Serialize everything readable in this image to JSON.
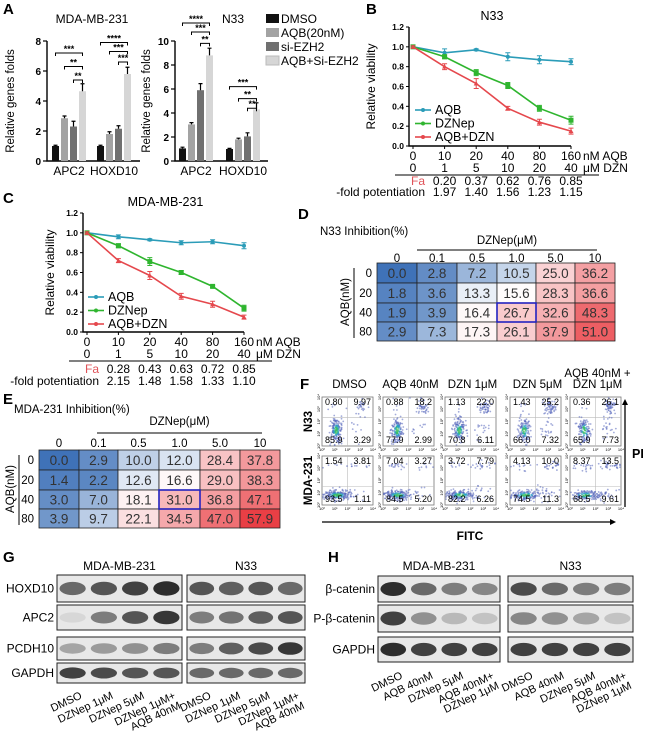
{
  "panels": {
    "A": "A",
    "B": "B",
    "C": "C",
    "D": "D",
    "E": "E",
    "F": "F",
    "G": "G",
    "H": "H"
  },
  "chart_data": [
    {
      "type": "bar",
      "title": "MDA-MB-231",
      "ylabel": "Relative genes folds",
      "categories": [
        "APC2",
        "HOXD10"
      ],
      "ylim": [
        0,
        8
      ],
      "yticks": [
        "0",
        "2",
        "4",
        "6",
        "8"
      ],
      "series": [
        {
          "name": "DMSO",
          "color": "#111111",
          "values": [
            1.0,
            1.0
          ],
          "errors": [
            0.05,
            0.05
          ]
        },
        {
          "name": "AQB(20nM)",
          "color": "#a3a3a3",
          "values": [
            2.85,
            1.8
          ],
          "errors": [
            0.15,
            0.15
          ]
        },
        {
          "name": "si-EZH2",
          "color": "#707070",
          "values": [
            2.3,
            2.15
          ],
          "errors": [
            0.35,
            0.2
          ]
        },
        {
          "name": "AQB+Si-EZH2",
          "color": "#d6d6d6",
          "values": [
            4.65,
            5.8
          ],
          "errors": [
            0.5,
            0.45
          ]
        }
      ],
      "significance": [
        {
          "category": 0,
          "from": 0,
          "to": 3,
          "label": "***",
          "y": 7.2
        },
        {
          "category": 0,
          "from": 1,
          "to": 3,
          "label": "**",
          "y": 6.3
        },
        {
          "category": 0,
          "from": 2,
          "to": 3,
          "label": "**",
          "y": 5.4
        },
        {
          "category": 1,
          "from": 0,
          "to": 3,
          "label": "****",
          "y": 7.9
        },
        {
          "category": 1,
          "from": 1,
          "to": 3,
          "label": "***",
          "y": 7.3
        },
        {
          "category": 1,
          "from": 2,
          "to": 3,
          "label": "***",
          "y": 6.6
        }
      ]
    },
    {
      "type": "bar",
      "title": "N33",
      "ylabel": "Relative genes folds",
      "categories": [
        "APC2",
        "HOXD10"
      ],
      "ylim": [
        0,
        10
      ],
      "yticks": [
        "0",
        "2",
        "4",
        "6",
        "8",
        "10"
      ],
      "series": [
        {
          "color": "#111111",
          "values": [
            1.05,
            1.0
          ],
          "errors": [
            0.1,
            0.05
          ]
        },
        {
          "color": "#a3a3a3",
          "values": [
            3.05,
            1.8
          ],
          "errors": [
            0.15,
            0.1
          ]
        },
        {
          "color": "#707070",
          "values": [
            5.9,
            2.05
          ],
          "errors": [
            0.55,
            0.3
          ]
        },
        {
          "color": "#d6d6d6",
          "values": [
            8.8,
            4.3
          ],
          "errors": [
            0.6,
            0.55
          ]
        }
      ],
      "significance": [
        {
          "category": 0,
          "from": 0,
          "to": 3,
          "label": "****",
          "y": 11.5
        },
        {
          "category": 0,
          "from": 1,
          "to": 3,
          "label": "***",
          "y": 10.75
        },
        {
          "category": 0,
          "from": 2,
          "to": 3,
          "label": "**",
          "y": 9.8
        },
        {
          "category": 1,
          "from": 0,
          "to": 3,
          "label": "***",
          "y": 6.2
        },
        {
          "category": 1,
          "from": 1,
          "to": 3,
          "label": "**",
          "y": 5.2
        },
        {
          "category": 1,
          "from": 2,
          "to": 3,
          "label": "**",
          "y": 4.4
        }
      ]
    },
    {
      "type": "line",
      "title": "N33",
      "ylabel": "Relative viability",
      "ylim": [
        0,
        1.2
      ],
      "yticks": [
        "0.0",
        "0.2",
        "0.4",
        "0.6",
        "0.8",
        "1.0",
        "1.2"
      ],
      "x_aqb": [
        "0",
        "10",
        "20",
        "40",
        "80",
        "160"
      ],
      "x_aqb_unit": "nM AQB",
      "x_dzn": [
        "0",
        "1",
        "5",
        "10",
        "20",
        "40"
      ],
      "x_dzn_unit": "μM DZN",
      "fa_label": "Fa",
      "fa": [
        "0.20",
        "0.37",
        "0.62",
        "0.76",
        "0.85"
      ],
      "fold_label": "-fold potentiation",
      "fold": [
        "1.97",
        "1.40",
        "1.56",
        "1.23",
        "1.15"
      ],
      "series": [
        {
          "name": "AQB",
          "color": "#2b9cb8",
          "values": [
            1.0,
            0.94,
            0.97,
            0.9,
            0.87,
            0.85
          ],
          "errors": [
            0.01,
            0.04,
            0.01,
            0.04,
            0.04,
            0.03
          ]
        },
        {
          "name": "DZNep",
          "color": "#2fb52f",
          "values": [
            1.0,
            0.9,
            0.74,
            0.61,
            0.38,
            0.26
          ],
          "errors": [
            0.01,
            0.02,
            0.03,
            0.03,
            0.03,
            0.04
          ]
        },
        {
          "name": "AQB+DZN",
          "color": "#e5484d",
          "values": [
            1.0,
            0.8,
            0.63,
            0.38,
            0.24,
            0.15
          ],
          "errors": [
            0.01,
            0.03,
            0.05,
            0.02,
            0.03,
            0.03
          ]
        }
      ]
    },
    {
      "type": "line",
      "title": "MDA-MB-231",
      "ylabel": "Relative viability",
      "ylim": [
        0,
        1.2
      ],
      "yticks": [
        "0.0",
        "0.2",
        "0.4",
        "0.6",
        "0.8",
        "1.0",
        "1.2"
      ],
      "x_aqb": [
        "0",
        "10",
        "20",
        "40",
        "80",
        "160"
      ],
      "x_aqb_unit": "nM AQB",
      "x_dzn": [
        "0",
        "1",
        "5",
        "10",
        "20",
        "40"
      ],
      "x_dzn_unit": "μM DZN",
      "fa_label": "Fa",
      "fa": [
        "0.28",
        "0.43",
        "0.63",
        "0.72",
        "0.85"
      ],
      "fold_label": "-fold potentiation",
      "fold": [
        "2.15",
        "1.48",
        "1.58",
        "1.33",
        "1.10"
      ],
      "series": [
        {
          "name": "AQB",
          "color": "#2b9cb8",
          "values": [
            1.0,
            0.96,
            0.93,
            0.9,
            0.91,
            0.87
          ],
          "errors": [
            0.01,
            0.02,
            0.01,
            0.02,
            0.02,
            0.03
          ]
        },
        {
          "name": "DZNep",
          "color": "#2fb52f",
          "values": [
            1.0,
            0.87,
            0.71,
            0.6,
            0.46,
            0.24
          ],
          "errors": [
            0.01,
            0.02,
            0.04,
            0.02,
            0.01,
            0.03
          ]
        },
        {
          "name": "AQB+DZN",
          "color": "#e5484d",
          "values": [
            1.0,
            0.72,
            0.57,
            0.36,
            0.28,
            0.15
          ],
          "errors": [
            0.01,
            0.02,
            0.04,
            0.03,
            0.03,
            0.02
          ]
        }
      ]
    },
    {
      "type": "heatmap",
      "title": "N33 Inhibition(%)",
      "xlabel": "DZNep(μM)",
      "ylabel": "AQB(nM)",
      "columns": [
        "0",
        "0.1",
        "0.5",
        "1.0",
        "5.0",
        "10"
      ],
      "rows": [
        "0",
        "20",
        "40",
        "80"
      ],
      "values": [
        [
          "0.0",
          "2.8",
          "7.2",
          "10.5",
          "25.0",
          "36.2"
        ],
        [
          "1.8",
          "3.6",
          "13.3",
          "15.6",
          "28.3",
          "36.6"
        ],
        [
          "1.9",
          "3.9",
          "16.4",
          "26.7",
          "32.6",
          "48.3"
        ],
        [
          "2.9",
          "7.3",
          "17.3",
          "26.1",
          "37.9",
          "51.0"
        ]
      ],
      "highlight": {
        "row": 2,
        "column": 3,
        "color": "#2222c0"
      },
      "colors": {
        "low": "#3f72b8",
        "mid": "#ffffff",
        "high": "#e8363c"
      }
    },
    {
      "type": "heatmap",
      "title": "MDA-231 Inhibition(%)",
      "xlabel": "DZNep(μM)",
      "ylabel": "AQB(nM)",
      "columns": [
        "0",
        "0.1",
        "0.5",
        "1.0",
        "5.0",
        "10"
      ],
      "rows": [
        "0",
        "20",
        "40",
        "80"
      ],
      "values": [
        [
          "0.0",
          "2.9",
          "10.0",
          "12.0",
          "28.4",
          "37.8"
        ],
        [
          "1.4",
          "2.2",
          "12.6",
          "16.6",
          "29.0",
          "38.3"
        ],
        [
          "3.0",
          "7.0",
          "18.1",
          "31.0",
          "36.8",
          "47.1"
        ],
        [
          "3.9",
          "9.7",
          "22.1",
          "34.5",
          "47.0",
          "57.9"
        ]
      ],
      "highlight": {
        "row": 2,
        "column": 3,
        "color": "#2222c0"
      },
      "colors": {
        "low": "#3f72b8",
        "mid": "#ffffff",
        "high": "#e8363c"
      }
    }
  ],
  "flow": {
    "columns": [
      [
        "DMSO"
      ],
      [
        "AQB 40nM"
      ],
      [
        "DZN 1μM"
      ],
      [
        "DZN 5μM"
      ],
      [
        "AQB 40nM +",
        "DZN 1μM"
      ]
    ],
    "rows": [
      {
        "label": "N33",
        "quadrants": [
          [
            "0.80",
            "9.97",
            "85.9",
            "3.29"
          ],
          [
            "0.88",
            "18.2",
            "77.9",
            "2.99"
          ],
          [
            "1.13",
            "22.0",
            "70.8",
            "6.11"
          ],
          [
            "1.43",
            "25.2",
            "66.0",
            "7.32"
          ],
          [
            "0.36",
            "26.1",
            "65.9",
            "7.73"
          ]
        ]
      },
      {
        "label": "MDA-231",
        "quadrants": [
          [
            "1.54",
            "3.81",
            "93.5",
            "1.11"
          ],
          [
            "7.04",
            "3.27",
            "84.5",
            "5.20"
          ],
          [
            "3.72",
            "7.79",
            "82.2",
            "6.26"
          ],
          [
            "4.13",
            "10.0",
            "74.5",
            "11.3"
          ],
          [
            "8.37",
            "13.5",
            "68.5",
            "9.61"
          ]
        ]
      }
    ],
    "xlabel": "FITC",
    "ylabel": "PI",
    "axis_ticks": [
      "10⁰",
      "10¹",
      "10²",
      "10³",
      "10⁴"
    ]
  },
  "western_G": {
    "cell_lines": [
      "MDA-MB-231",
      "N33"
    ],
    "proteins": [
      "HOXD10",
      "APC2",
      "PCDH10",
      "GAPDH"
    ],
    "lanes": [
      [
        "DMSO"
      ],
      [
        "DZNep 1μM"
      ],
      [
        "DZNep 5μM"
      ],
      [
        "DZNep 1μM+",
        "AQB 40nM"
      ]
    ],
    "band_intensity": [
      [
        [
          0.6,
          0.7,
          0.8,
          0.9
        ],
        [
          0.05,
          0.5,
          0.7,
          0.85
        ],
        [
          0.3,
          0.35,
          0.4,
          0.5
        ],
        [
          0.8,
          0.75,
          0.7,
          0.7
        ]
      ],
      [
        [
          0.7,
          0.65,
          0.7,
          0.6
        ],
        [
          0.5,
          0.55,
          0.65,
          0.7
        ],
        [
          0.5,
          0.65,
          0.75,
          0.85
        ],
        [
          0.6,
          0.6,
          0.6,
          0.6
        ]
      ]
    ]
  },
  "western_H": {
    "cell_lines": [
      "MDA-MB-231",
      "N33"
    ],
    "proteins": [
      "β-catenin",
      "P-β-catenin",
      "GAPDH"
    ],
    "lanes": [
      [
        "DMSO"
      ],
      [
        "AQB 40nM"
      ],
      [
        "DZNep 5μM"
      ],
      [
        "AQB 40nM+",
        "DZNep 1μM"
      ]
    ],
    "band_intensity": [
      [
        [
          0.9,
          0.6,
          0.5,
          0.45
        ],
        [
          0.8,
          0.4,
          0.2,
          0.15
        ],
        [
          0.9,
          0.8,
          0.8,
          0.8
        ]
      ],
      [
        [
          0.75,
          0.6,
          0.5,
          0.5
        ],
        [
          0.45,
          0.4,
          0.3,
          0.15
        ],
        [
          0.8,
          0.8,
          0.8,
          0.8
        ]
      ]
    ]
  }
}
